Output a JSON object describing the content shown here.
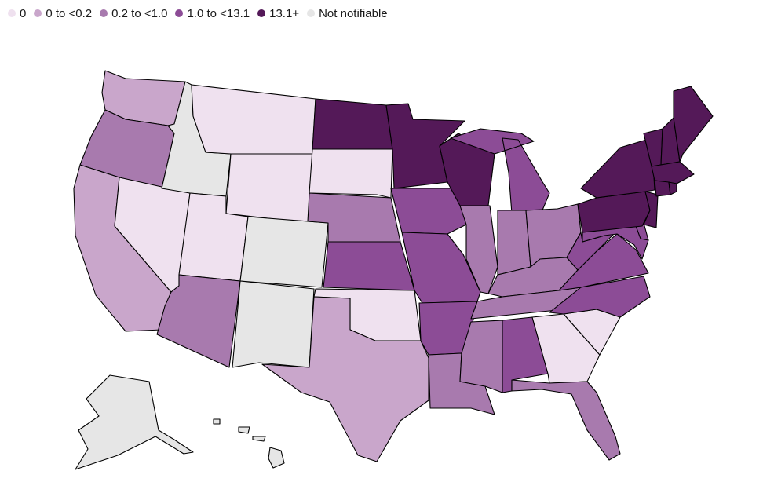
{
  "legend": [
    {
      "label": "0",
      "color": "#efe1ef"
    },
    {
      "label": "0 to <0.2",
      "color": "#c9a6cb"
    },
    {
      "label": "0.2 to <1.0",
      "color": "#a87aae"
    },
    {
      "label": "1.0 to <13.1",
      "color": "#8c4c96"
    },
    {
      "label": "13.1+",
      "color": "#541958"
    },
    {
      "label": "Not notifiable",
      "color": "#e6e6e6"
    }
  ],
  "states": {
    "WA": "0 to <0.2",
    "OR": "0.2 to <1.0",
    "CA": "0 to <0.2",
    "NV": "0",
    "ID": "Not notifiable",
    "MT": "0",
    "WY": "0",
    "UT": "0",
    "AZ": "0.2 to <1.0",
    "CO": "Not notifiable",
    "NM": "Not notifiable",
    "ND": "13.1+",
    "SD": "0",
    "NE": "0.2 to <1.0",
    "KS": "1.0 to <13.1",
    "OK": "0",
    "TX": "0 to <0.2",
    "MN": "13.1+",
    "IA": "1.0 to <13.1",
    "MO": "1.0 to <13.1",
    "AR": "1.0 to <13.1",
    "LA": "0.2 to <1.0",
    "WI": "13.1+",
    "IL": "0.2 to <1.0",
    "MI": "1.0 to <13.1",
    "IN": "0.2 to <1.0",
    "OH": "0.2 to <1.0",
    "KY": "0.2 to <1.0",
    "TN": "0.2 to <1.0",
    "MS": "0.2 to <1.0",
    "AL": "1.0 to <13.1",
    "GA": "0",
    "FL": "0.2 to <1.0",
    "SC": "0",
    "NC": "1.0 to <13.1",
    "VA": "1.0 to <13.1",
    "WV": "1.0 to <13.1",
    "PA": "13.1+",
    "NY": "13.1+",
    "VT": "13.1+",
    "NH": "13.1+",
    "ME": "13.1+",
    "MA": "13.1+",
    "CT": "13.1+",
    "RI": "13.1+",
    "NJ": "13.1+",
    "DE": "1.0 to <13.1",
    "MD": "1.0 to <13.1",
    "AK": "Not notifiable",
    "HI": "Not notifiable"
  }
}
